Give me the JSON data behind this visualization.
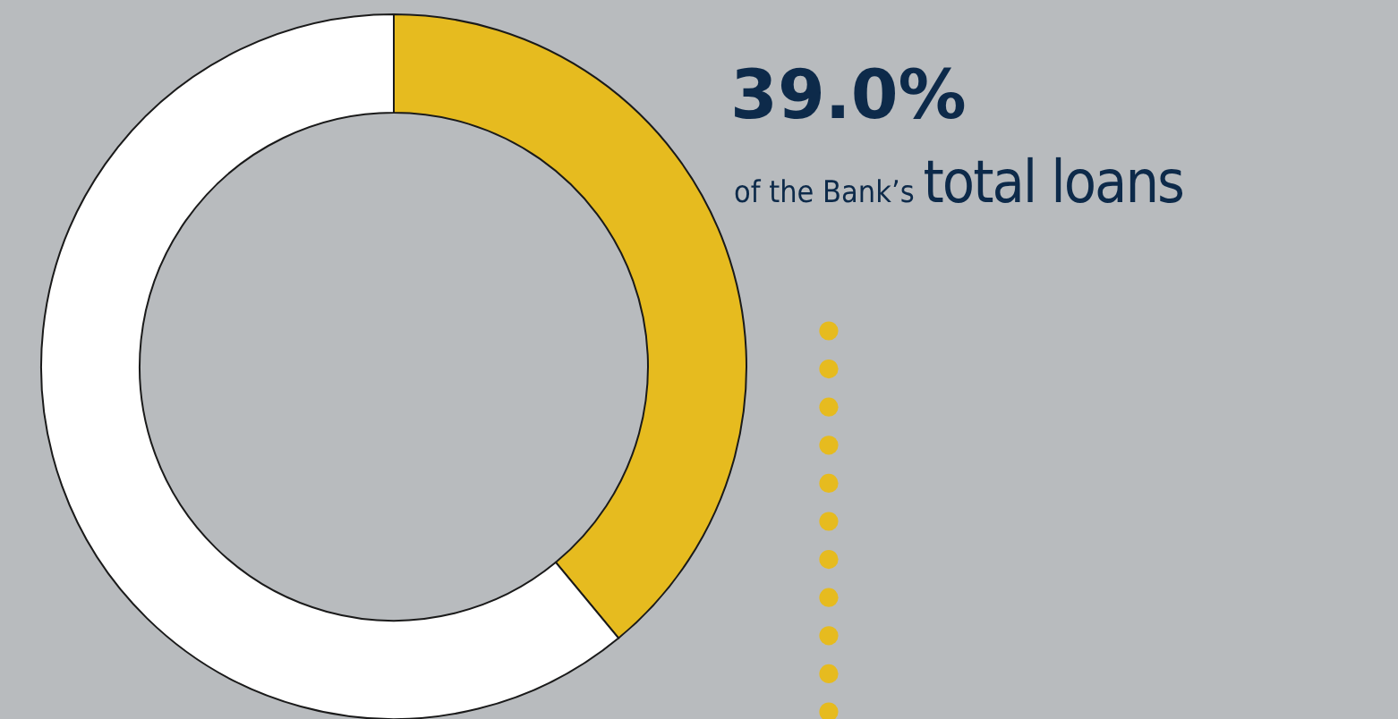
{
  "chart_data": {
    "type": "donut",
    "title": "39.0%",
    "annotations": [
      "of the Bank’s",
      "total loans"
    ],
    "categories": [
      null,
      null
    ],
    "values": [
      39.0,
      61.0
    ],
    "colors": [
      "#e6bb1f",
      "#ffffff"
    ]
  }
}
